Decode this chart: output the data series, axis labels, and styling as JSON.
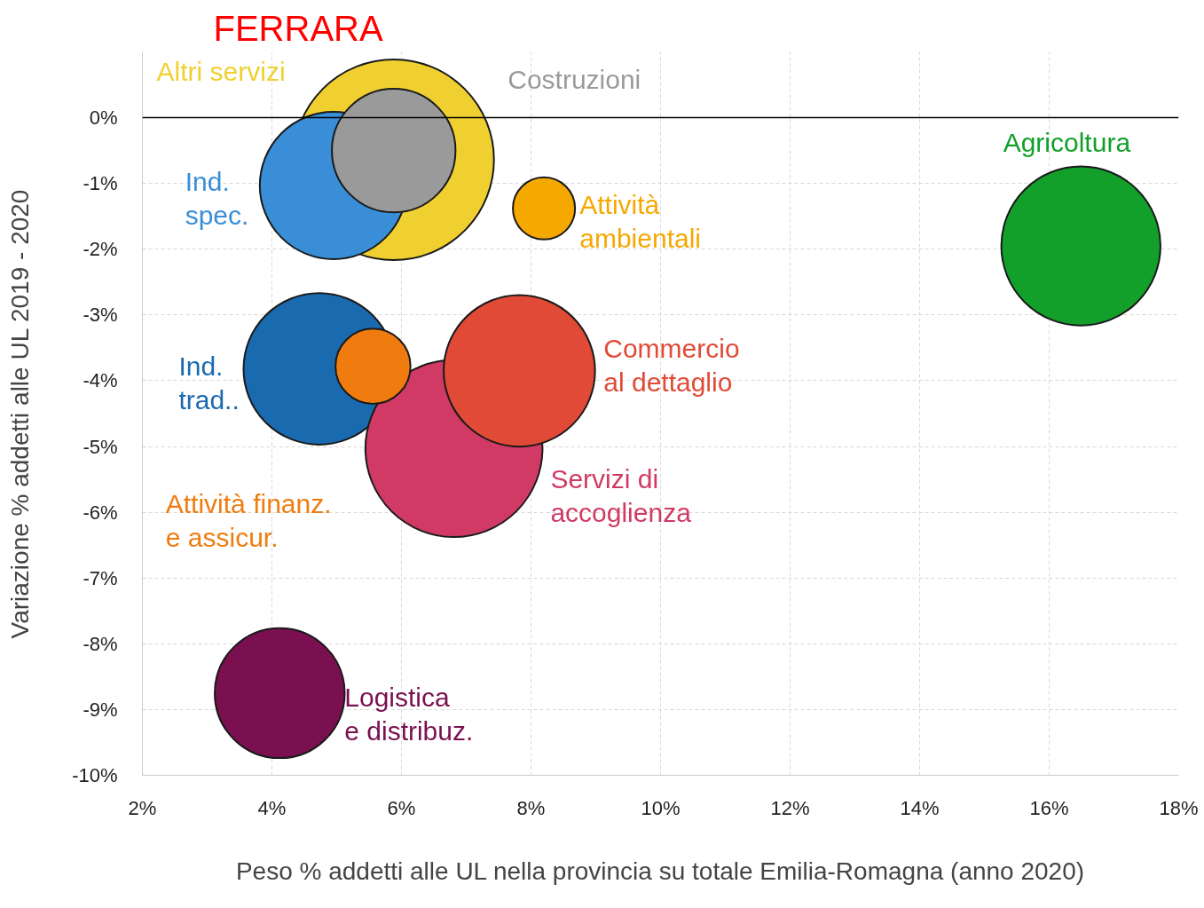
{
  "chart_data": {
    "type": "bubble",
    "title": "FERRARA",
    "xlabel": "Peso % addetti alle UL nella provincia su totale Emilia-Romagna (anno 2020)",
    "ylabel": "Variazione % addetti alle UL 2019 - 2020",
    "xlim": [
      2,
      18
    ],
    "ylim": [
      -10,
      1
    ],
    "xticks": [
      {
        "value": 2,
        "label": "2%"
      },
      {
        "value": 4,
        "label": "4%"
      },
      {
        "value": 6,
        "label": "6%"
      },
      {
        "value": 8,
        "label": "8%"
      },
      {
        "value": 10,
        "label": "10%"
      },
      {
        "value": 12,
        "label": "12%"
      },
      {
        "value": 14,
        "label": "14%"
      },
      {
        "value": 16,
        "label": "16%"
      },
      {
        "value": 18,
        "label": "18%"
      }
    ],
    "yticks": [
      {
        "value": -10,
        "label": "-10%"
      },
      {
        "value": -9,
        "label": "-9%"
      },
      {
        "value": -8,
        "label": "-8%"
      },
      {
        "value": -7,
        "label": "-7%"
      },
      {
        "value": -6,
        "label": "-6%"
      },
      {
        "value": -5,
        "label": "-5%"
      },
      {
        "value": -4,
        "label": "-4%"
      },
      {
        "value": -3,
        "label": "-3%"
      },
      {
        "value": -2,
        "label": "-2%"
      },
      {
        "value": -1,
        "label": "-1%"
      },
      {
        "value": 0,
        "label": "0%"
      }
    ],
    "grid": true,
    "ref_lines": [
      {
        "axis": "y",
        "value": 0,
        "color": "#000000"
      }
    ],
    "series": [
      {
        "name": "Altri servizi",
        "color": "#f0d030",
        "x": [
          5.88
        ],
        "values": [
          -0.64
        ],
        "sizes": [
          1
        ]
      },
      {
        "name": "Ind.\nspec.",
        "color": "#3a8ed8",
        "x": [
          4.95
        ],
        "values": [
          -1.03
        ],
        "sizes": [
          0.54
        ]
      },
      {
        "name": "Costruzioni",
        "color": "#9a9a9a",
        "x": [
          5.88
        ],
        "values": [
          -0.5
        ],
        "sizes": [
          0.38
        ]
      },
      {
        "name": "Attività\nambientali",
        "color": "#f5a800",
        "x": [
          8.2
        ],
        "values": [
          -1.38
        ],
        "sizes": [
          0.096
        ]
      },
      {
        "name": "Agricoltura",
        "color": "#12a02a",
        "x": [
          16.49
        ],
        "values": [
          -1.95
        ],
        "sizes": [
          0.63
        ]
      },
      {
        "name": "Ind.\ntrad..",
        "color": "#1a6ab0",
        "x": [
          4.73
        ],
        "values": [
          -3.82
        ],
        "sizes": [
          0.57
        ]
      },
      {
        "name": "Servizi di\naccoglienza",
        "color": "#d03a64",
        "x": [
          6.81
        ],
        "values": [
          -5.03
        ],
        "sizes": [
          0.78
        ]
      },
      {
        "name": "Attività finanz.\ne assicur.",
        "color": "#f07c10",
        "x": [
          5.56
        ],
        "values": [
          -3.78
        ],
        "sizes": [
          0.14
        ]
      },
      {
        "name": "Commercio\nal dettaglio",
        "color": "#e04a36",
        "x": [
          7.82
        ],
        "values": [
          -3.85
        ],
        "sizes": [
          0.57
        ]
      },
      {
        "name": "Logistica\ne distribuz.",
        "color": "#7a1050",
        "x": [
          4.12
        ],
        "values": [
          -8.75
        ],
        "sizes": [
          0.42
        ]
      }
    ]
  }
}
